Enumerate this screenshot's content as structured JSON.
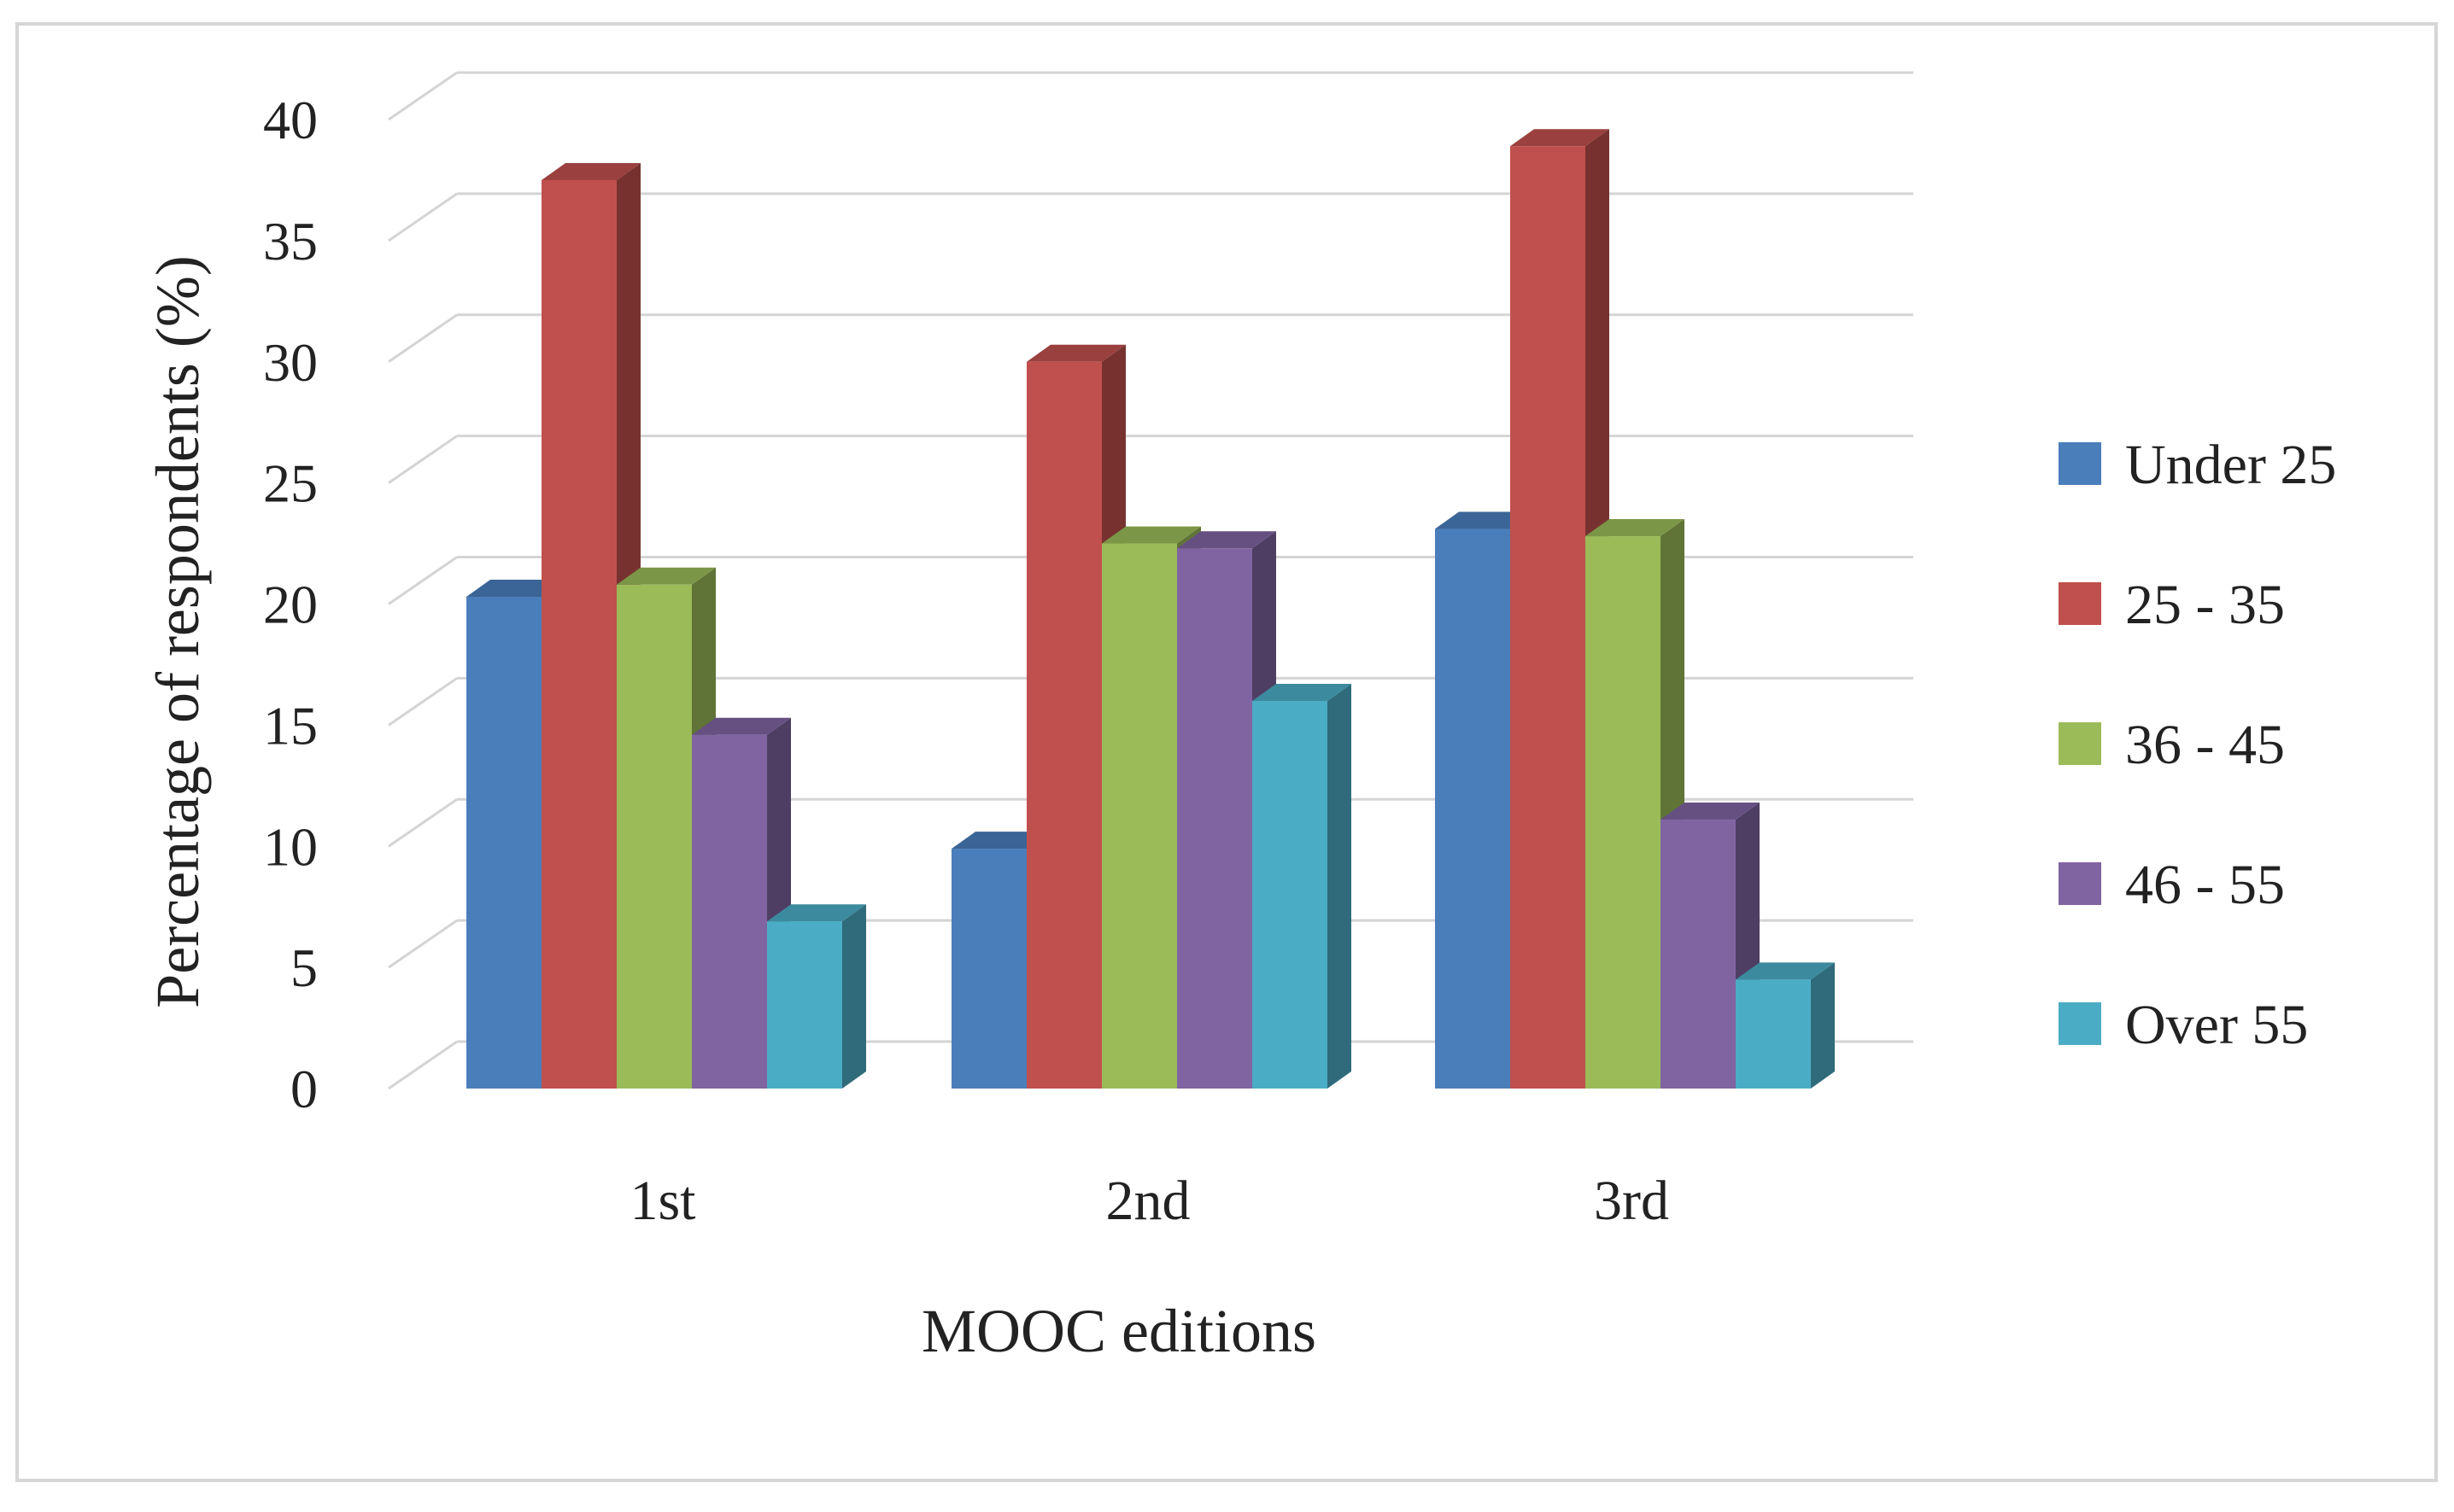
{
  "chart_data": {
    "type": "bar",
    "title": "",
    "xlabel": "MOOC editions",
    "ylabel": "Percentage of respondents  (%)",
    "categories": [
      "1st",
      "2nd",
      "3rd"
    ],
    "ylim": [
      0,
      40
    ],
    "ytick_step": 5,
    "yticks": [
      "0",
      "5",
      "10",
      "15",
      "20",
      "25",
      "30",
      "35",
      "40"
    ],
    "grid": true,
    "legend_position": "right",
    "series": [
      {
        "name": "Under 25",
        "color": "#4a7ebb",
        "values": [
          20.3,
          9.9,
          23.1
        ]
      },
      {
        "name": "25 - 35",
        "color": "#c0504d",
        "values": [
          37.5,
          30.0,
          38.9
        ]
      },
      {
        "name": "36 - 45",
        "color": "#9bbb59",
        "values": [
          20.8,
          22.5,
          22.8
        ]
      },
      {
        "name": "46 - 55",
        "color": "#8064a2",
        "values": [
          14.6,
          22.3,
          11.1
        ]
      },
      {
        "name": "Over 55",
        "color": "#4bacc6",
        "values": [
          6.9,
          16.0,
          4.5
        ]
      }
    ]
  }
}
